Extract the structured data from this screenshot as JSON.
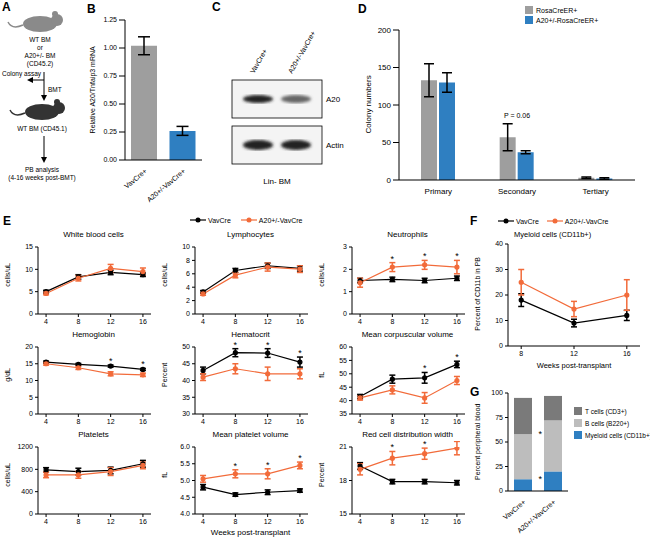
{
  "panel_A": {
    "label": "A",
    "donor": [
      "WT BM",
      "or",
      "A20+/- BM",
      "(CD45.2)"
    ],
    "colony": "Colony assay",
    "transplant": "BMT",
    "recipient": "WT BM (CD45.1)",
    "readout": [
      "PB analysis",
      "(4-16 weeks post-BMT)"
    ]
  },
  "panel_C": {
    "label": "C",
    "lanes": [
      "VavCre+",
      "A20+/-VavCre+"
    ],
    "bands": [
      "A20",
      "Actin"
    ],
    "caption": "Lin- BM"
  },
  "chart_data": [
    {
      "type": "bar",
      "panel": "B",
      "y_label": "Relative A20/Tnfaip3 mRNA",
      "categories": [
        "VavCre+",
        "A20+/-VavCre+"
      ],
      "values": [
        1.02,
        0.26
      ],
      "errors": [
        0.08,
        0.04
      ],
      "colors": [
        "#9e9e9e",
        "#2f7fc1"
      ],
      "ylim": [
        0,
        1.25
      ],
      "yticks": [
        {
          "value": 0,
          "label": "0.00"
        },
        0.25,
        {
          "value": 0.5,
          "label": "0.50"
        },
        0.75,
        {
          "value": 1,
          "label": "1.00"
        },
        1.25
      ]
    },
    {
      "type": "bar",
      "panel": "D",
      "y_label": "Colony numbers",
      "categories": [
        "Primary",
        "Secondary",
        "Tertiary"
      ],
      "series": [
        {
          "name": "RosaCreER+",
          "color": "#9e9e9e",
          "values": [
            133,
            57,
            3
          ],
          "errors": [
            22,
            18,
            1
          ]
        },
        {
          "name": "A20+/-RosaCreER+",
          "color": "#2f7fc1",
          "values": [
            130,
            37,
            2
          ],
          "errors": [
            13,
            2,
            1
          ]
        }
      ],
      "ylim": [
        0,
        200
      ],
      "yticks": [
        0,
        50,
        100,
        150,
        200
      ],
      "annotations": [
        {
          "text": "P = 0.06",
          "category": "Secondary"
        }
      ]
    },
    {
      "type": "line",
      "panel": "E",
      "x_label": "Weeks post-transplant",
      "x": [
        4,
        8,
        12,
        16
      ],
      "xlim": [
        3,
        17
      ],
      "xticks": [
        4,
        8,
        12,
        16
      ],
      "subplots": [
        {
          "title": "White blood cells",
          "y_label": "cells/uL",
          "ylim": [
            0,
            15
          ],
          "yticks": [
            0,
            5,
            10,
            15
          ],
          "series": [
            {
              "name": "VavCre",
              "color": "#000000",
              "marker": "circle",
              "values": [
                5,
                8.3,
                9.3,
                8.8
              ],
              "errors": [
                0.3,
                0.5,
                0.5,
                0.4
              ]
            },
            {
              "name": "A20+/-VavCre",
              "color": "#f26b3a",
              "marker": "circle",
              "values": [
                4.6,
                8,
                10.2,
                9.5
              ],
              "errors": [
                0.3,
                0.6,
                0.9,
                0.8
              ]
            }
          ],
          "annotations": []
        },
        {
          "title": "Lymphocytes",
          "y_label": "cells/uL",
          "ylim": [
            0,
            10
          ],
          "yticks": [
            0,
            2,
            4,
            6,
            8,
            10
          ],
          "series": [
            {
              "name": "VavCre",
              "color": "#000000",
              "marker": "circle",
              "values": [
                3.3,
                6.5,
                7.2,
                6.8
              ],
              "errors": [
                0.2,
                0.3,
                0.4,
                0.4
              ]
            },
            {
              "name": "A20+/-VavCre",
              "color": "#f26b3a",
              "marker": "circle",
              "values": [
                3,
                5.8,
                7,
                6.7
              ],
              "errors": [
                0.2,
                0.4,
                0.6,
                0.5
              ]
            }
          ],
          "annotations": []
        },
        {
          "title": "Neutrophils",
          "y_label": "cells/uL",
          "ylim": [
            0,
            3
          ],
          "yticks": [
            0,
            1,
            2,
            3
          ],
          "series": [
            {
              "name": "VavCre",
              "color": "#000000",
              "marker": "circle",
              "values": [
                1.5,
                1.55,
                1.5,
                1.6
              ],
              "errors": [
                0.1,
                0.1,
                0.1,
                0.1
              ]
            },
            {
              "name": "A20+/-VavCre",
              "color": "#f26b3a",
              "marker": "circle",
              "values": [
                1.4,
                2.1,
                2.2,
                2.1
              ],
              "errors": [
                0.2,
                0.2,
                0.2,
                0.3
              ]
            }
          ],
          "annotations": [
            {
              "text": "*",
              "x": 8
            },
            {
              "text": "*",
              "x": 12
            },
            {
              "text": "*",
              "x": 16
            }
          ]
        },
        {
          "title": "Hemoglobin",
          "y_label": "g/dL",
          "ylim": [
            0,
            20
          ],
          "yticks": [
            0,
            5,
            10,
            15,
            20
          ],
          "series": [
            {
              "name": "VavCre",
              "color": "#000000",
              "marker": "circle",
              "values": [
                15.5,
                14.8,
                14.3,
                13.3
              ],
              "errors": [
                0.3,
                0.3,
                0.3,
                0.3
              ]
            },
            {
              "name": "A20+/-VavCre",
              "color": "#f26b3a",
              "marker": "circle",
              "values": [
                15,
                13.8,
                12,
                11.7
              ],
              "errors": [
                0.4,
                0.5,
                0.6,
                0.5
              ]
            }
          ],
          "annotations": [
            {
              "text": "*",
              "x": 12
            },
            {
              "text": "*",
              "x": 16
            }
          ]
        },
        {
          "title": "Hematocrit",
          "y_label": "Percent",
          "ylim": [
            30,
            50
          ],
          "yticks": [
            30,
            35,
            40,
            45,
            50
          ],
          "series": [
            {
              "name": "VavCre",
              "color": "#000000",
              "marker": "circle",
              "values": [
                43,
                48.3,
                48.2,
                45.5
              ],
              "errors": [
                1,
                1.2,
                1.3,
                1.5
              ]
            },
            {
              "name": "A20+/-VavCre",
              "color": "#f26b3a",
              "marker": "circle",
              "values": [
                41,
                43.5,
                42,
                42
              ],
              "errors": [
                1,
                1.5,
                2,
                1.5
              ]
            }
          ],
          "annotations": [
            {
              "text": "*",
              "x": 8
            },
            {
              "text": "*",
              "x": 12
            },
            {
              "text": "*",
              "x": 16
            }
          ]
        },
        {
          "title": "Mean corpuscular volume",
          "y_label": "fL",
          "ylim": [
            35,
            60
          ],
          "yticks": [
            35,
            40,
            45,
            50,
            55,
            60
          ],
          "series": [
            {
              "name": "VavCre",
              "color": "#000000",
              "marker": "circle",
              "values": [
                41.5,
                48,
                48.5,
                53.5
              ],
              "errors": [
                0.8,
                1.5,
                2,
                1.2
              ]
            },
            {
              "name": "A20+/-VavCre",
              "color": "#f26b3a",
              "marker": "circle",
              "values": [
                41,
                44,
                41,
                47.5
              ],
              "errors": [
                0.8,
                1.5,
                2,
                1.5
              ]
            }
          ],
          "annotations": [
            {
              "text": "*",
              "x": 12
            },
            {
              "text": "*",
              "x": 16
            }
          ]
        },
        {
          "title": "Platelets",
          "y_label": "cells/uL",
          "ylim": [
            0,
            1200
          ],
          "yticks": [
            0,
            400,
            800,
            1200
          ],
          "series": [
            {
              "name": "VavCre",
              "color": "#000000",
              "marker": "circle",
              "values": [
                790,
                760,
                780,
                900
              ],
              "errors": [
                40,
                60,
                60,
                60
              ]
            },
            {
              "name": "A20+/-VavCre",
              "color": "#f26b3a",
              "marker": "circle",
              "values": [
                700,
                700,
                760,
                870
              ],
              "errors": [
                50,
                60,
                70,
                60
              ]
            }
          ],
          "annotations": []
        },
        {
          "title": "Mean platelet volume",
          "y_label": "fL",
          "ylim": [
            4,
            6
          ],
          "yticks": [
            {
              "value": 4,
              "label": "4.0"
            },
            4.5,
            {
              "value": 5,
              "label": "5.0"
            },
            5.5,
            {
              "value": 6,
              "label": "6.0"
            }
          ],
          "series": [
            {
              "name": "VavCre",
              "color": "#000000",
              "marker": "circle",
              "values": [
                4.8,
                4.58,
                4.65,
                4.7
              ],
              "errors": [
                0.08,
                0.05,
                0.07,
                0.05
              ]
            },
            {
              "name": "A20+/-VavCre",
              "color": "#f26b3a",
              "marker": "circle",
              "values": [
                5.05,
                5.2,
                5.2,
                5.45
              ],
              "errors": [
                0.1,
                0.12,
                0.15,
                0.1
              ]
            }
          ],
          "annotations": [
            {
              "text": "*",
              "x": 8
            },
            {
              "text": "*",
              "x": 12
            },
            {
              "text": "*",
              "x": 16
            }
          ]
        },
        {
          "title": "Red cell distribution width",
          "y_label": "Percent",
          "ylim": [
            15,
            21
          ],
          "yticks": [
            15,
            18,
            21
          ],
          "series": [
            {
              "name": "VavCre",
              "color": "#000000",
              "marker": "circle",
              "values": [
                19.3,
                17.9,
                17.9,
                17.8
              ],
              "errors": [
                0.3,
                0.2,
                0.2,
                0.2
              ]
            },
            {
              "name": "A20+/-VavCre",
              "color": "#f26b3a",
              "marker": "circle",
              "values": [
                19,
                20,
                20.4,
                20.9
              ],
              "errors": [
                0.5,
                0.6,
                0.5,
                0.6
              ]
            }
          ],
          "annotations": [
            {
              "text": "*",
              "x": 8
            },
            {
              "text": "*",
              "x": 12
            },
            {
              "text": "*",
              "x": 16
            }
          ]
        }
      ]
    },
    {
      "type": "line",
      "panel": "F",
      "title": "Myeloid cells (CD11b+)",
      "y_label": "Percent of CD11b in PB",
      "x_label": "Weeks post-transplant",
      "x": [
        8,
        12,
        16
      ],
      "xlim": [
        7,
        17
      ],
      "xticks": [
        8,
        12,
        16
      ],
      "ylim": [
        0,
        40
      ],
      "yticks": [
        0,
        10,
        20,
        30,
        40
      ],
      "series": [
        {
          "name": "VavCre",
          "color": "#000000",
          "marker": "circle",
          "values": [
            18,
            9,
            12
          ],
          "errors": [
            2.5,
            1.5,
            2
          ]
        },
        {
          "name": "A20+/-VavCre",
          "color": "#f26b3a",
          "marker": "circle",
          "values": [
            25,
            14.5,
            20
          ],
          "errors": [
            5,
            3,
            6
          ]
        }
      ]
    },
    {
      "type": "bar",
      "panel": "G",
      "stacked": true,
      "y_label": "Percent peripheral blood",
      "categories": [
        "VavCre+",
        "A20+/-VavCre+"
      ],
      "series": [
        {
          "name": "Myeloid cells (CD11b+)",
          "color": "#2f7fc1",
          "values": [
            12,
            20
          ]
        },
        {
          "name": "B cells (B220+)",
          "color": "#bdbdbd",
          "values": [
            46,
            52
          ]
        },
        {
          "name": "T cells (CD3+)",
          "color": "#7a7a7a",
          "values": [
            37,
            25
          ]
        }
      ],
      "ylim": [
        0,
        100
      ],
      "yticks": [
        0,
        25,
        50,
        75,
        100
      ],
      "annotations": [
        {
          "text": "*",
          "series": "B cells (B220+)"
        },
        {
          "text": "*",
          "series": "Myeloid cells (CD11b+)"
        }
      ]
    }
  ]
}
